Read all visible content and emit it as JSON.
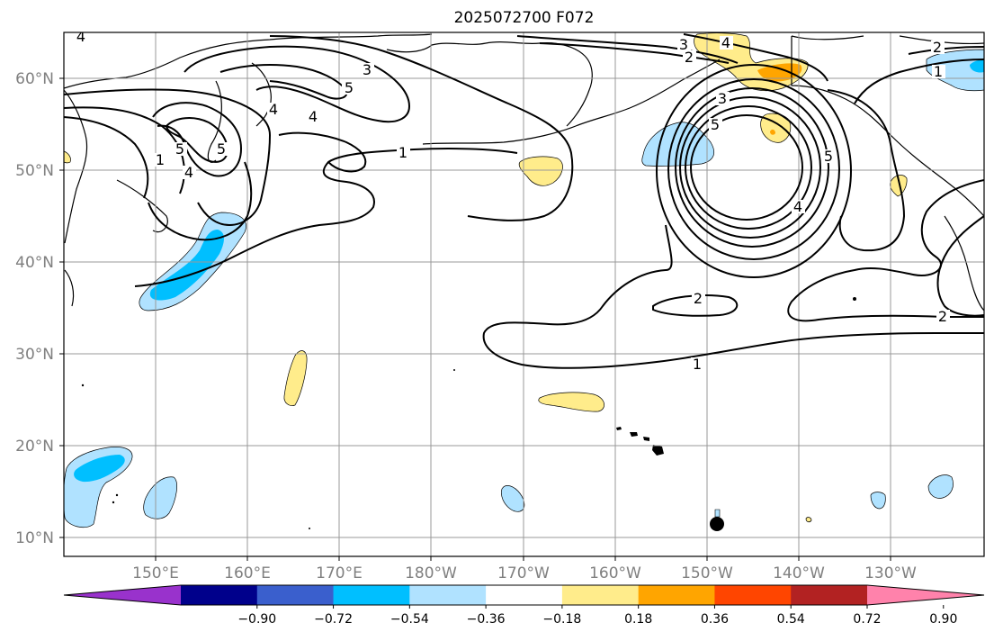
{
  "title": "2025072700 F072",
  "lat_labels": [
    "60°N",
    "50°N",
    "40°N",
    "30°N",
    "20°N",
    "10°N"
  ],
  "lon_labels": [
    "150°E",
    "160°E",
    "170°E",
    "180°W",
    "170°W",
    "160°W",
    "150°W",
    "140°W",
    "130°W"
  ],
  "contour_labels": [
    "4",
    "3",
    "5",
    "4",
    "5",
    "4",
    "1",
    "5",
    "3",
    "4",
    "2",
    "3",
    "5",
    "5",
    "4",
    "2",
    "1",
    "2",
    "1",
    "2",
    "4",
    "1"
  ],
  "colorbar": {
    "tick_labels": [
      "−0.90",
      "−0.72",
      "−0.54",
      "−0.36",
      "−0.18",
      "0.18",
      "0.36",
      "0.54",
      "0.72",
      "0.90"
    ],
    "colors": [
      "#9932cc",
      "#00008b",
      "#3a5fcd",
      "#00bfff",
      "#b0e2ff",
      "#ffffff",
      "#ffec8b",
      "#ffa500",
      "#ff4500",
      "#b22222",
      "#ff82ab"
    ]
  },
  "marker": "black-dot"
}
